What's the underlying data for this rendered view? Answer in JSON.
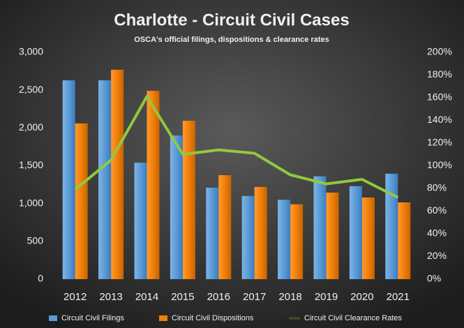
{
  "chart_data": {
    "type": "bar",
    "title": "Charlotte - Circuit Civil Cases",
    "subtitle": "OSCA's official filings, dispositions & clearance rates",
    "categories": [
      "2012",
      "2013",
      "2014",
      "2015",
      "2016",
      "2017",
      "2018",
      "2019",
      "2020",
      "2021"
    ],
    "series": [
      {
        "name": "Circuit Civil Filings",
        "color": "#5b9bd5",
        "type": "bar",
        "values": [
          2630,
          2630,
          1540,
          1900,
          1210,
          1100,
          1050,
          1360,
          1230,
          1395
        ]
      },
      {
        "name": "Circuit Civil Dispositions",
        "color": "#f07f09",
        "type": "bar",
        "values": [
          2060,
          2770,
          2490,
          2095,
          1375,
          1220,
          990,
          1145,
          1080,
          1015
        ]
      },
      {
        "name": "Circuit Civil Clearance Rates",
        "color": "#92c83e",
        "type": "line",
        "axis": "y2",
        "values": [
          79,
          105,
          161,
          110,
          114,
          111,
          92,
          84,
          88,
          72
        ]
      }
    ],
    "ylim": [
      0,
      3000
    ],
    "yticks": [
      0,
      500,
      {
        "value": 1000,
        "label": "1,000"
      },
      {
        "value": 1500,
        "label": "1,500"
      },
      {
        "value": 2000,
        "label": "2,000"
      },
      {
        "value": 2500,
        "label": "2,500"
      },
      {
        "value": 3000,
        "label": "3,000"
      }
    ],
    "y2lim": [
      0,
      200
    ],
    "y2ticks": [
      {
        "value": 0,
        "label": "0%"
      },
      {
        "value": 20,
        "label": "20%"
      },
      {
        "value": 40,
        "label": "40%"
      },
      {
        "value": 60,
        "label": "60%"
      },
      {
        "value": 80,
        "label": "80%"
      },
      {
        "value": 100,
        "label": "100%"
      },
      {
        "value": 120,
        "label": "120%"
      },
      {
        "value": 140,
        "label": "140%"
      },
      {
        "value": 160,
        "label": "160%"
      },
      {
        "value": 180,
        "label": "180%"
      },
      {
        "value": 200,
        "label": "200%"
      }
    ],
    "legend": "bottom"
  }
}
